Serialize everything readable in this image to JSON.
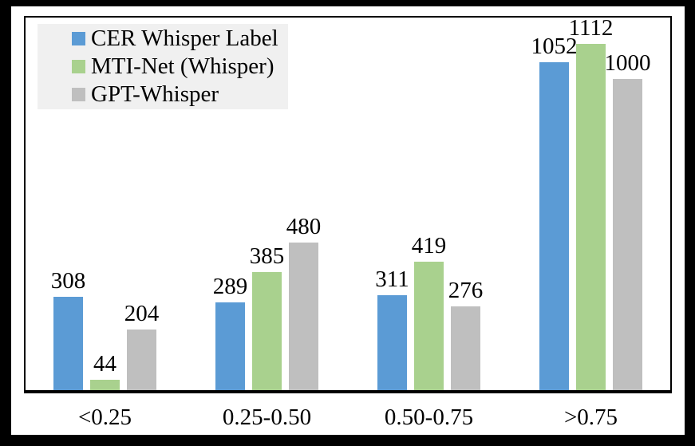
{
  "chart_data": {
    "type": "bar",
    "title": "",
    "xlabel": "",
    "ylabel": "",
    "categories": [
      "<0.25",
      "0.25-0.50",
      "0.50-0.75",
      ">0.75"
    ],
    "series": [
      {
        "name": "CER Whisper Label",
        "color": "#5B9BD5",
        "values": [
          308,
          289,
          311,
          1052
        ]
      },
      {
        "name": "MTI-Net (Whisper)",
        "color": "#A9D18E",
        "values": [
          44,
          385,
          419,
          1112
        ]
      },
      {
        "name": "GPT-Whisper",
        "color": "#BFBFBF",
        "values": [
          204,
          480,
          276,
          1000
        ]
      }
    ],
    "ylim": [
      0,
      1200
    ],
    "grid": false,
    "legend_position": "top-left",
    "data_labels": true,
    "axis_visible": [
      "frame"
    ],
    "tick_labels_visible": false
  },
  "colors": {
    "outer_border": "#000000",
    "chart_background": "#FFFFFF",
    "frame": "#000000",
    "legend_background": "#F0F0F0",
    "label_text": "#000000"
  }
}
